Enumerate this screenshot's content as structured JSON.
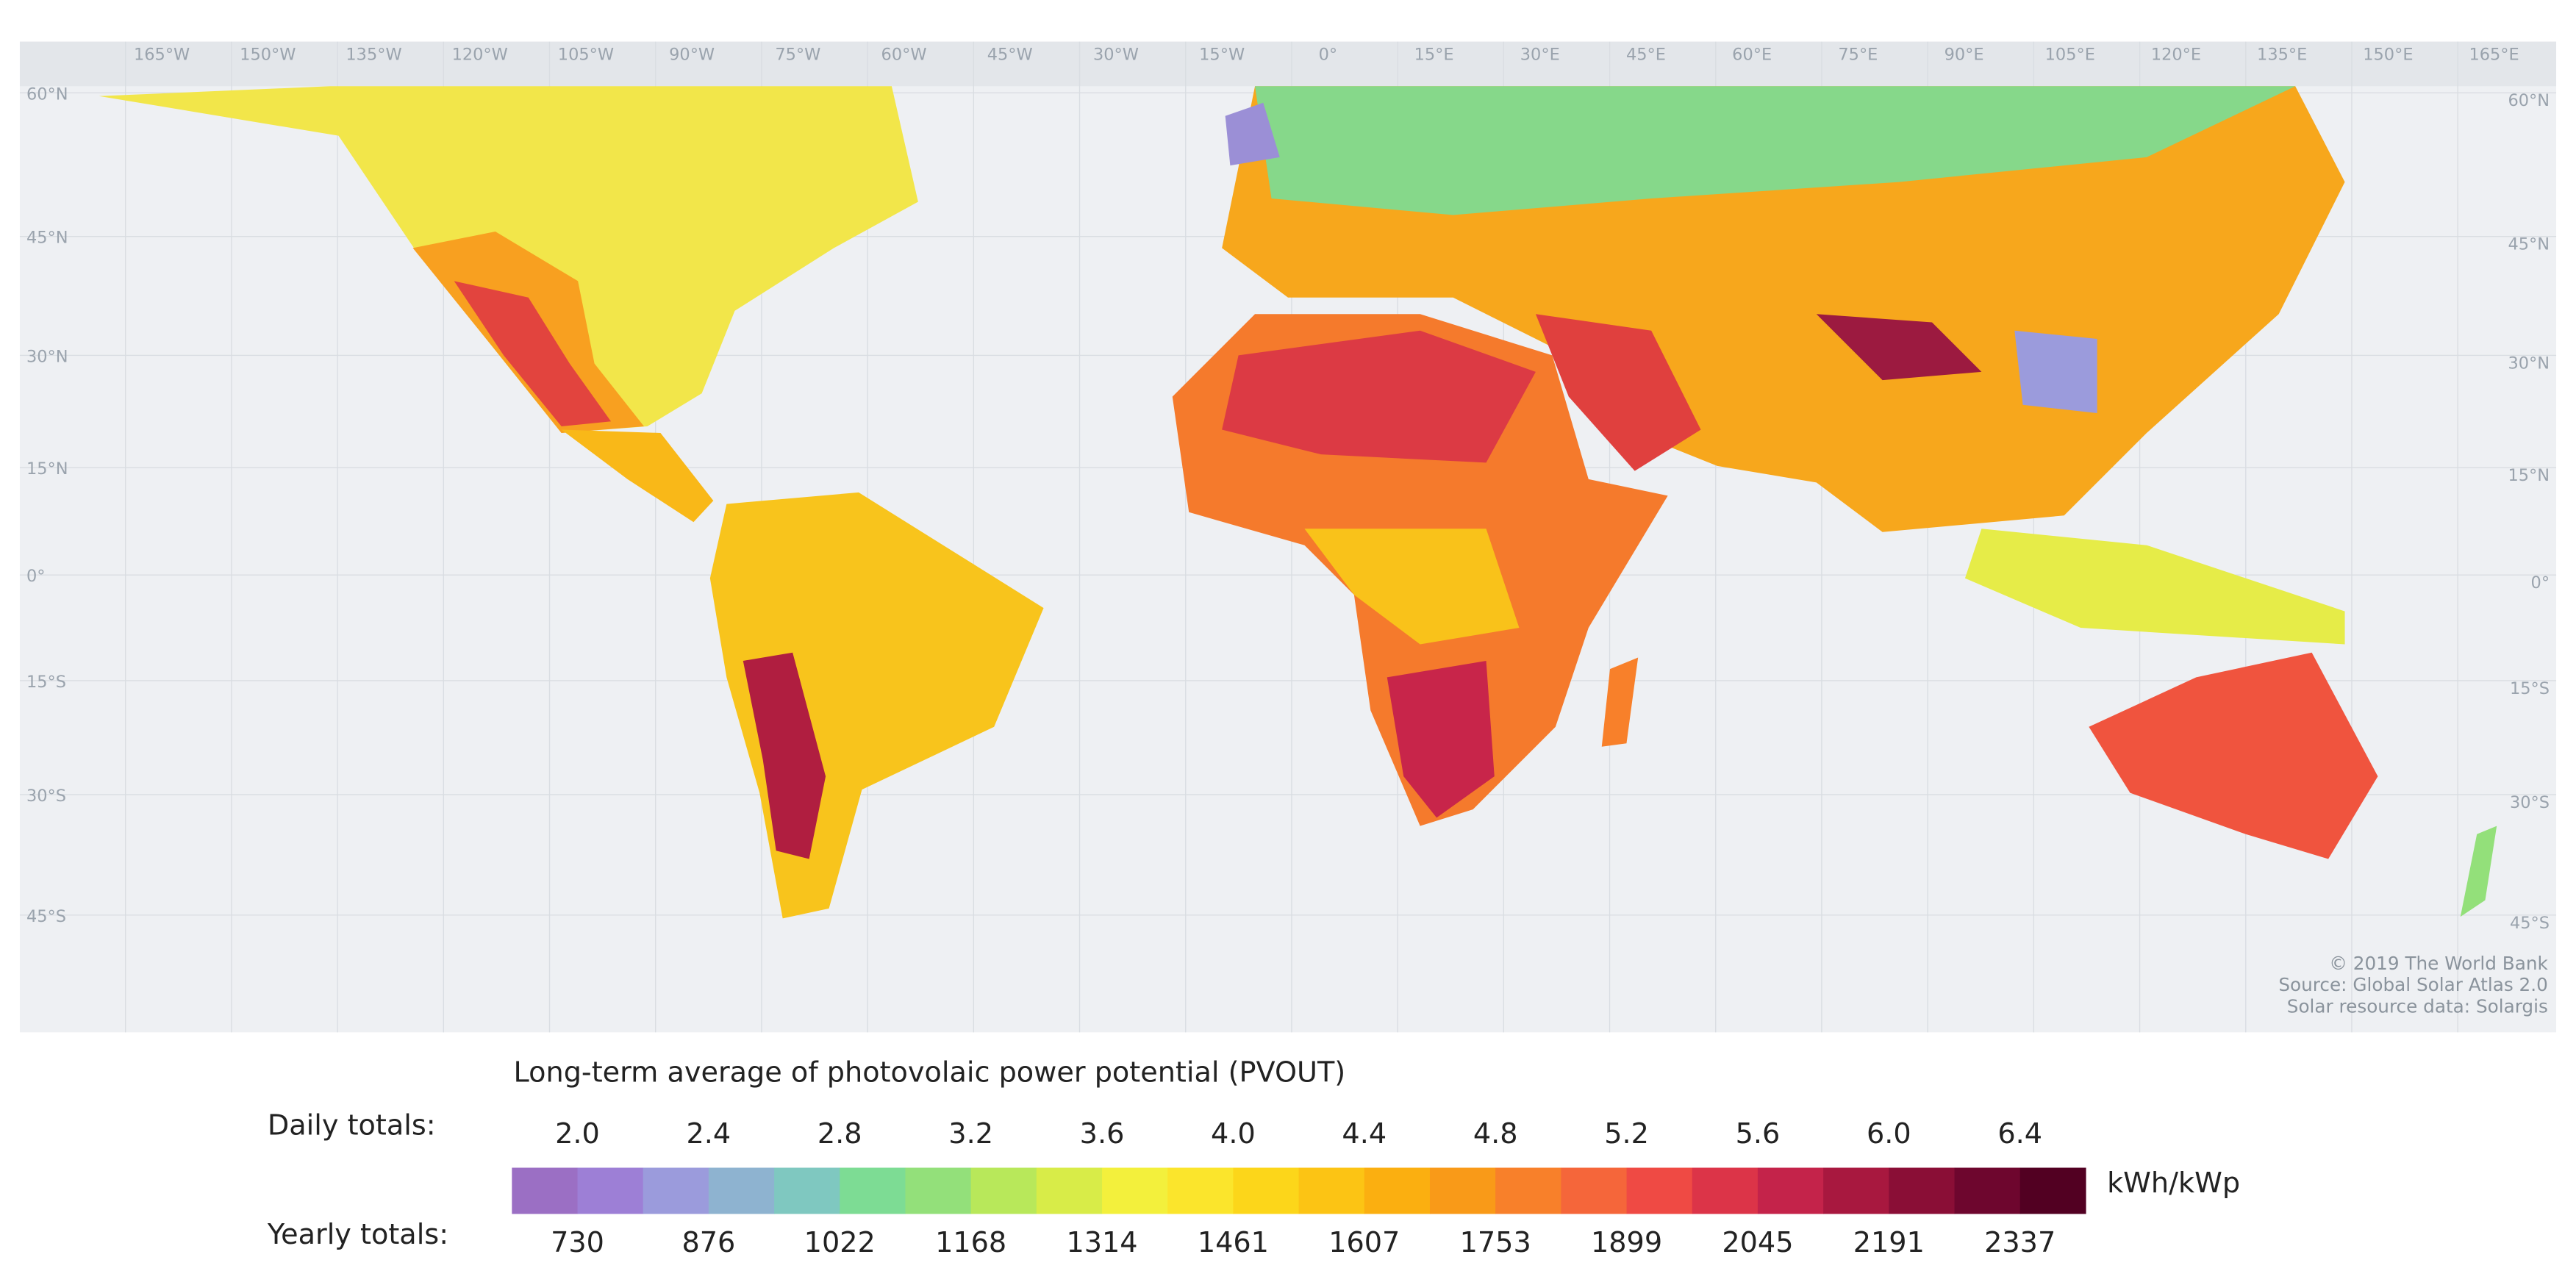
{
  "map": {
    "lon_labels": [
      "165°W",
      "150°W",
      "135°W",
      "120°W",
      "105°W",
      "90°W",
      "75°W",
      "60°W",
      "45°W",
      "30°W",
      "15°W",
      "0°",
      "15°E",
      "30°E",
      "45°E",
      "60°E",
      "75°E",
      "90°E",
      "105°E",
      "120°E",
      "135°E",
      "150°E",
      "165°E"
    ],
    "lat_labels": [
      "60°N",
      "45°N",
      "30°N",
      "15°N",
      "0°",
      "15°S",
      "30°S",
      "45°S"
    ],
    "credits": [
      "© 2019 The World Bank",
      "Source: Global Solar Atlas 2.0",
      "Solar resource data: Solargis"
    ]
  },
  "legend": {
    "title": "Long-term average of photovolaic power potential (PVOUT)",
    "daily_label": "Daily totals:",
    "daily_values": [
      "2.0",
      "2.4",
      "2.8",
      "3.2",
      "3.6",
      "4.0",
      "4.4",
      "4.8",
      "5.2",
      "5.6",
      "6.0",
      "6.4"
    ],
    "yearly_label": "Yearly totals:",
    "yearly_values": [
      730,
      876,
      1022,
      1168,
      1314,
      1461,
      1607,
      1753,
      1899,
      2045,
      2191,
      2337
    ],
    "unit": "kWh/kWp",
    "colors": [
      "#9b6fc4",
      "#9d7fd6",
      "#9b9bdc",
      "#8eb3d0",
      "#7fc8c0",
      "#7ddc94",
      "#93e07a",
      "#b8e85a",
      "#d8ec48",
      "#f3f03c",
      "#fbe52c",
      "#fcd61a",
      "#fcc414",
      "#fbaf10",
      "#f99a18",
      "#f8802a",
      "#f5663a",
      "#ef4a44",
      "#dc3448",
      "#c4234a",
      "#a8183f",
      "#8a0e36",
      "#6e062e",
      "#520022"
    ]
  }
}
